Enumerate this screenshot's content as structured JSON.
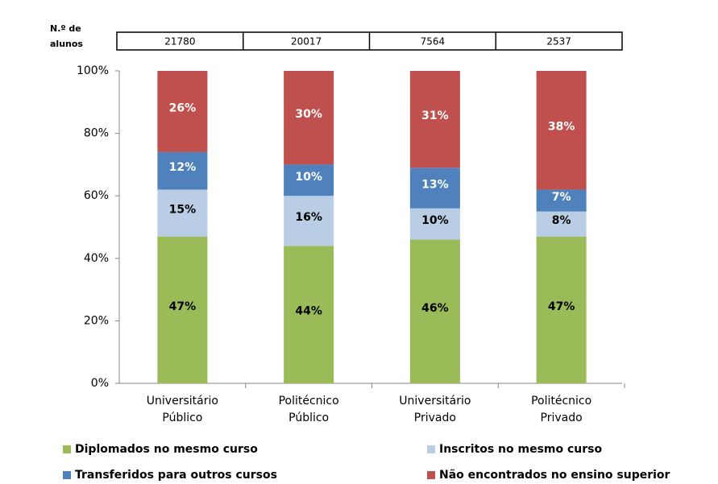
{
  "chart_data": {
    "type": "stacked_bar",
    "header_label": [
      "N.º de",
      "alunos"
    ],
    "header_values": [
      21780,
      20017,
      7564,
      2537
    ],
    "categories": [
      "Universitário Público",
      "Politécnico Público",
      "Universitário Privado",
      "Politécnico Privado"
    ],
    "series": [
      {
        "name": "Diplomados no mesmo curso",
        "color": "#9bbb59",
        "values": [
          47,
          44,
          46,
          47
        ],
        "value_labels": [
          "47%",
          "44%",
          "46%",
          "47%"
        ]
      },
      {
        "name": "Inscritos no mesmo curso",
        "color": "#b9cde5",
        "values": [
          15,
          16,
          10,
          8
        ],
        "value_labels": [
          "15%",
          "16%",
          "10%",
          "8%"
        ]
      },
      {
        "name": "Transferidos para outros cursos",
        "color": "#4f81bd",
        "values": [
          12,
          10,
          13,
          7
        ],
        "value_labels": [
          "12%",
          "10%",
          "13%",
          "7%"
        ]
      },
      {
        "name": "Não encontrados no ensino superior",
        "color": "#c0504d",
        "values": [
          26,
          30,
          31,
          38
        ],
        "value_labels": [
          "26%",
          "30%",
          "31%",
          "38%"
        ]
      }
    ],
    "ylim": [
      0,
      100
    ],
    "yticks": [
      {
        "value": 0,
        "label": "0%"
      },
      {
        "value": 20,
        "label": "20%"
      },
      {
        "value": 40,
        "label": "40%"
      },
      {
        "value": 60,
        "label": "60%"
      },
      {
        "value": 80,
        "label": "80%"
      },
      {
        "value": 100,
        "label": "100%"
      }
    ],
    "legend": "bottom"
  }
}
